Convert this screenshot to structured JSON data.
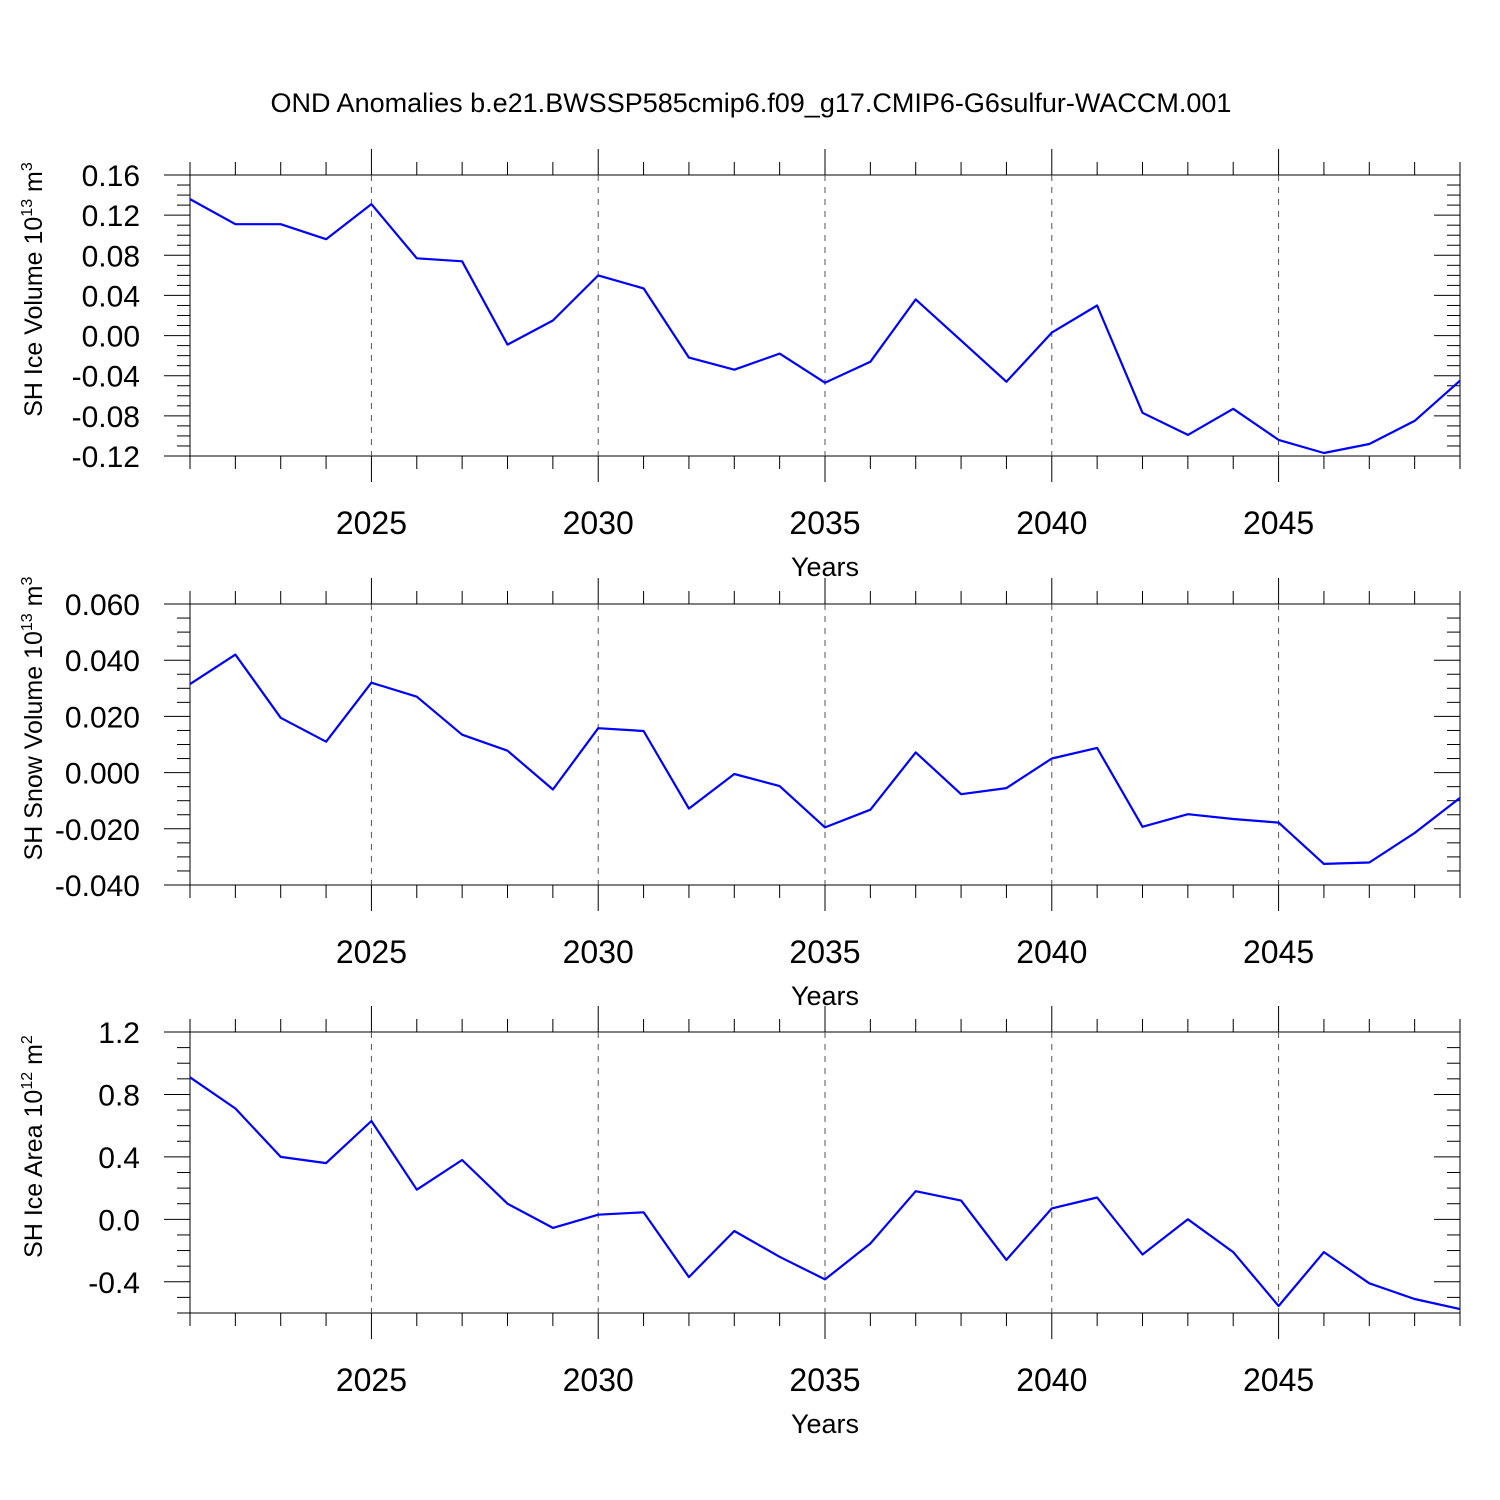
{
  "chart_data": [
    {
      "type": "line",
      "title": "OND Anomalies b.e21.BWSSP585cmip6.f09_g17.CMIP6-G6sulfur-WACCM.001",
      "ylabel_text": "SH Ice Volume 10",
      "ylabel_exp": "13",
      "ylabel_unit": " m",
      "ylabel_unit_exp": "3",
      "xlabel": "Years",
      "xlim": [
        2021,
        2049
      ],
      "ylim": [
        -0.12,
        0.16
      ],
      "yticks": [
        "0.16",
        "0.12",
        "0.08",
        "0.04",
        "0.00",
        "-0.04",
        "-0.08",
        "-0.12"
      ],
      "xticks": [
        "2025",
        "2030",
        "2035",
        "2040",
        "2045"
      ],
      "x": [
        2021,
        2022,
        2023,
        2024,
        2025,
        2026,
        2027,
        2028,
        2029,
        2030,
        2031,
        2032,
        2033,
        2034,
        2035,
        2036,
        2037,
        2038,
        2039,
        2040,
        2041,
        2042,
        2043,
        2044,
        2045,
        2046,
        2047,
        2048,
        2049
      ],
      "values": [
        0.136,
        0.111,
        0.111,
        0.096,
        0.131,
        0.077,
        0.074,
        -0.009,
        0.015,
        0.06,
        0.047,
        -0.022,
        -0.034,
        -0.018,
        -0.047,
        -0.026,
        0.036,
        -0.005,
        -0.046,
        0.003,
        0.03,
        -0.077,
        -0.099,
        -0.073,
        -0.104,
        -0.117,
        -0.108,
        -0.085,
        -0.045
      ],
      "color": "#0000ff"
    },
    {
      "type": "line",
      "ylabel_text": "SH Snow Volume 10",
      "ylabel_exp": "13",
      "ylabel_unit": " m",
      "ylabel_unit_exp": "3",
      "xlabel": "Years",
      "xlim": [
        2021,
        2049
      ],
      "ylim": [
        -0.04,
        0.06
      ],
      "yticks": [
        "0.060",
        "0.040",
        "0.020",
        "0.000",
        "-0.020",
        "-0.040"
      ],
      "xticks": [
        "2025",
        "2030",
        "2035",
        "2040",
        "2045"
      ],
      "x": [
        2021,
        2022,
        2023,
        2024,
        2025,
        2026,
        2027,
        2028,
        2029,
        2030,
        2031,
        2032,
        2033,
        2034,
        2035,
        2036,
        2037,
        2038,
        2039,
        2040,
        2041,
        2042,
        2043,
        2044,
        2045,
        2046,
        2047,
        2048,
        2049
      ],
      "values": [
        0.0315,
        0.042,
        0.0195,
        0.011,
        0.032,
        0.027,
        0.0135,
        0.0078,
        -0.006,
        0.0158,
        0.0148,
        -0.0128,
        -0.0005,
        -0.0048,
        -0.0195,
        -0.0132,
        0.0072,
        -0.0077,
        -0.0055,
        0.005,
        0.0088,
        -0.0193,
        -0.0148,
        -0.0165,
        -0.0178,
        -0.0325,
        -0.032,
        -0.0215,
        -0.009
      ],
      "color": "#0000ff"
    },
    {
      "type": "line",
      "ylabel_text": "SH Ice Area 10",
      "ylabel_exp": "12",
      "ylabel_unit": " m",
      "ylabel_unit_exp": "2",
      "xlabel": "Years",
      "xlim": [
        2021,
        2049
      ],
      "ylim": [
        -0.6,
        1.2
      ],
      "yticks": [
        "1.2",
        "0.8",
        "0.4",
        "0.0",
        "-0.4"
      ],
      "xticks": [
        "2025",
        "2030",
        "2035",
        "2040",
        "2045"
      ],
      "x": [
        2021,
        2022,
        2023,
        2024,
        2025,
        2026,
        2027,
        2028,
        2029,
        2030,
        2031,
        2032,
        2033,
        2034,
        2035,
        2036,
        2037,
        2038,
        2039,
        2040,
        2041,
        2042,
        2043,
        2044,
        2045,
        2046,
        2047,
        2048,
        2049
      ],
      "values": [
        0.91,
        0.71,
        0.4,
        0.36,
        0.63,
        0.19,
        0.38,
        0.1,
        -0.055,
        0.03,
        0.045,
        -0.37,
        -0.075,
        -0.24,
        -0.385,
        -0.155,
        0.18,
        0.12,
        -0.26,
        0.07,
        0.14,
        -0.225,
        0.0,
        -0.21,
        -0.555,
        -0.21,
        -0.41,
        -0.51,
        -0.575
      ],
      "color": "#0000ff"
    }
  ]
}
